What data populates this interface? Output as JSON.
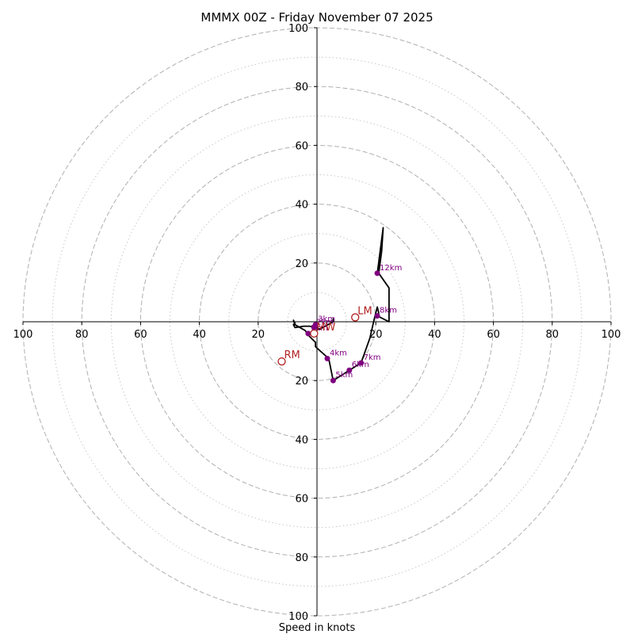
{
  "chart_data": {
    "type": "hodograph",
    "title": "MMMX 00Z - Friday November 07 2025",
    "xlabel": "Speed in knots",
    "speed_range": [
      0,
      100
    ],
    "major_rings": [
      20,
      40,
      60,
      80,
      100
    ],
    "minor_rings": [
      10,
      30,
      50,
      70,
      90
    ],
    "x_ticks": [
      {
        "value": -100,
        "label": "100"
      },
      {
        "value": -80,
        "label": "80"
      },
      {
        "value": -60,
        "label": "60"
      },
      {
        "value": -40,
        "label": "40"
      },
      {
        "value": -20,
        "label": "20"
      },
      {
        "value": 20,
        "label": "20"
      },
      {
        "value": 40,
        "label": "40"
      },
      {
        "value": 60,
        "label": "60"
      },
      {
        "value": 80,
        "label": "80"
      },
      {
        "value": 100,
        "label": "100"
      }
    ],
    "y_ticks": [
      {
        "value": 100,
        "label": "100"
      },
      {
        "value": 80,
        "label": "80"
      },
      {
        "value": 60,
        "label": "60"
      },
      {
        "value": 40,
        "label": "40"
      },
      {
        "value": 20,
        "label": "20"
      },
      {
        "value": -20,
        "label": "20"
      },
      {
        "value": -40,
        "label": "40"
      },
      {
        "value": -60,
        "label": "60"
      },
      {
        "value": -80,
        "label": "80"
      },
      {
        "value": -100,
        "label": "100"
      }
    ],
    "trace": [
      [
        5.5,
        1
      ],
      [
        5.5,
        0
      ],
      [
        1,
        -2.5
      ],
      [
        -0.5,
        -2
      ],
      [
        -2.5,
        -1.5
      ],
      [
        -4.5,
        -1.5
      ],
      [
        -7.5,
        -2
      ],
      [
        -8,
        -1
      ],
      [
        -7.5,
        -0.5
      ],
      [
        -8,
        0.5
      ],
      [
        -7.5,
        -1
      ],
      [
        -4,
        -3
      ],
      [
        -2.5,
        -5
      ],
      [
        -0.5,
        -7
      ],
      [
        -0.5,
        -8.5
      ],
      [
        4,
        -12.5
      ],
      [
        5.5,
        -20
      ],
      [
        11,
        -16.5
      ],
      [
        15,
        -14
      ],
      [
        18,
        -5.5
      ],
      [
        19.5,
        1
      ],
      [
        20.5,
        5
      ],
      [
        21,
        3
      ],
      [
        20.5,
        2
      ],
      [
        24.5,
        0
      ],
      [
        24.5,
        11.5
      ],
      [
        21,
        16.5
      ],
      [
        22,
        24
      ],
      [
        22.5,
        32
      ],
      [
        22,
        28
      ],
      [
        20.5,
        16.5
      ]
    ],
    "height_markers": [
      {
        "label": "1km",
        "u": -3,
        "v": -4
      },
      {
        "label": "2km",
        "u": -1,
        "v": -2
      },
      {
        "label": "3km",
        "u": -0.5,
        "v": -1
      },
      {
        "label": "4km",
        "u": 3.5,
        "v": -12.5
      },
      {
        "label": "5km",
        "u": 5.5,
        "v": -20
      },
      {
        "label": "6km",
        "u": 11,
        "v": -16.5
      },
      {
        "label": "7km",
        "u": 15,
        "v": -14
      },
      {
        "label": "8km",
        "u": 20.5,
        "v": 2
      },
      {
        "label": "12km",
        "u": 20.5,
        "v": 16.5
      }
    ],
    "motion_markers": [
      {
        "label": "LM",
        "u": 13,
        "v": 1.5
      },
      {
        "label": "RM",
        "u": -12,
        "v": -13.5
      },
      {
        "label": "MW",
        "u": -1,
        "v": -4
      }
    ],
    "colors": {
      "trace": "#000000",
      "height_marker": "#800080",
      "motion_marker": "#b22222",
      "major_ring": "#b0b0b0",
      "minor_ring": "#c8c8c8",
      "axis": "#000000"
    }
  }
}
